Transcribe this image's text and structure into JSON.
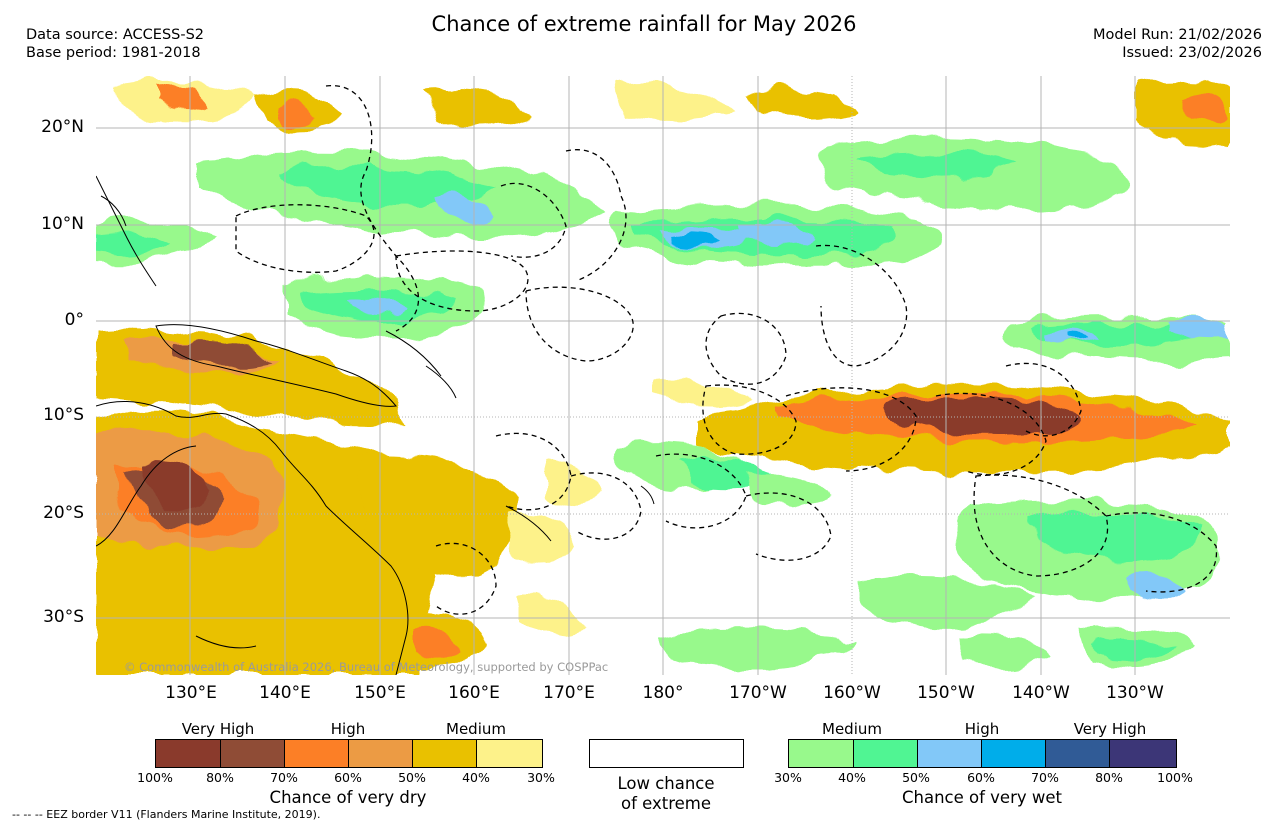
{
  "header": {
    "title": "Chance of extreme rainfall for May 2026",
    "data_source": "Data source: ACCESS-S2",
    "base_period": "Base period: 1981-2018",
    "model_run": "Model Run: 21/02/2026",
    "issued": "Issued: 23/02/2026"
  },
  "map": {
    "lat_labels": [
      "20°N",
      "10°N",
      "0°",
      "10°S",
      "20°S",
      "30°S"
    ],
    "lon_labels": [
      "130°E",
      "140°E",
      "150°E",
      "160°E",
      "170°E",
      "180°",
      "170°W",
      "160°W",
      "150°W",
      "140°W",
      "130°W"
    ],
    "copyright": "© Commonwealth of Australia 2026, Bureau of Meteorology, supported by COSPPac"
  },
  "legend": {
    "dry": {
      "title": "Chance of very dry",
      "categories": [
        "Very High",
        "High",
        "Medium"
      ],
      "colors": [
        "#8a3a2c",
        "#8f4c36",
        "#fc7f26",
        "#ec9b44",
        "#e9c100",
        "#fdf28a"
      ],
      "ticks": [
        "100%",
        "80%",
        "70%",
        "60%",
        "50%",
        "40%",
        "30%"
      ]
    },
    "low": {
      "line1": "Low chance",
      "line2": "of extreme"
    },
    "wet": {
      "title": "Chance of very wet",
      "categories": [
        "Medium",
        "High",
        "Very High"
      ],
      "colors": [
        "#98f98c",
        "#50f593",
        "#82c8f8",
        "#00adea",
        "#305b96",
        "#3c3677"
      ],
      "ticks": [
        "30%",
        "40%",
        "50%",
        "60%",
        "70%",
        "80%",
        "100%"
      ]
    }
  },
  "footnote": "--  --  -- EEZ border V11 (Flanders Marine Institute, 2019)."
}
